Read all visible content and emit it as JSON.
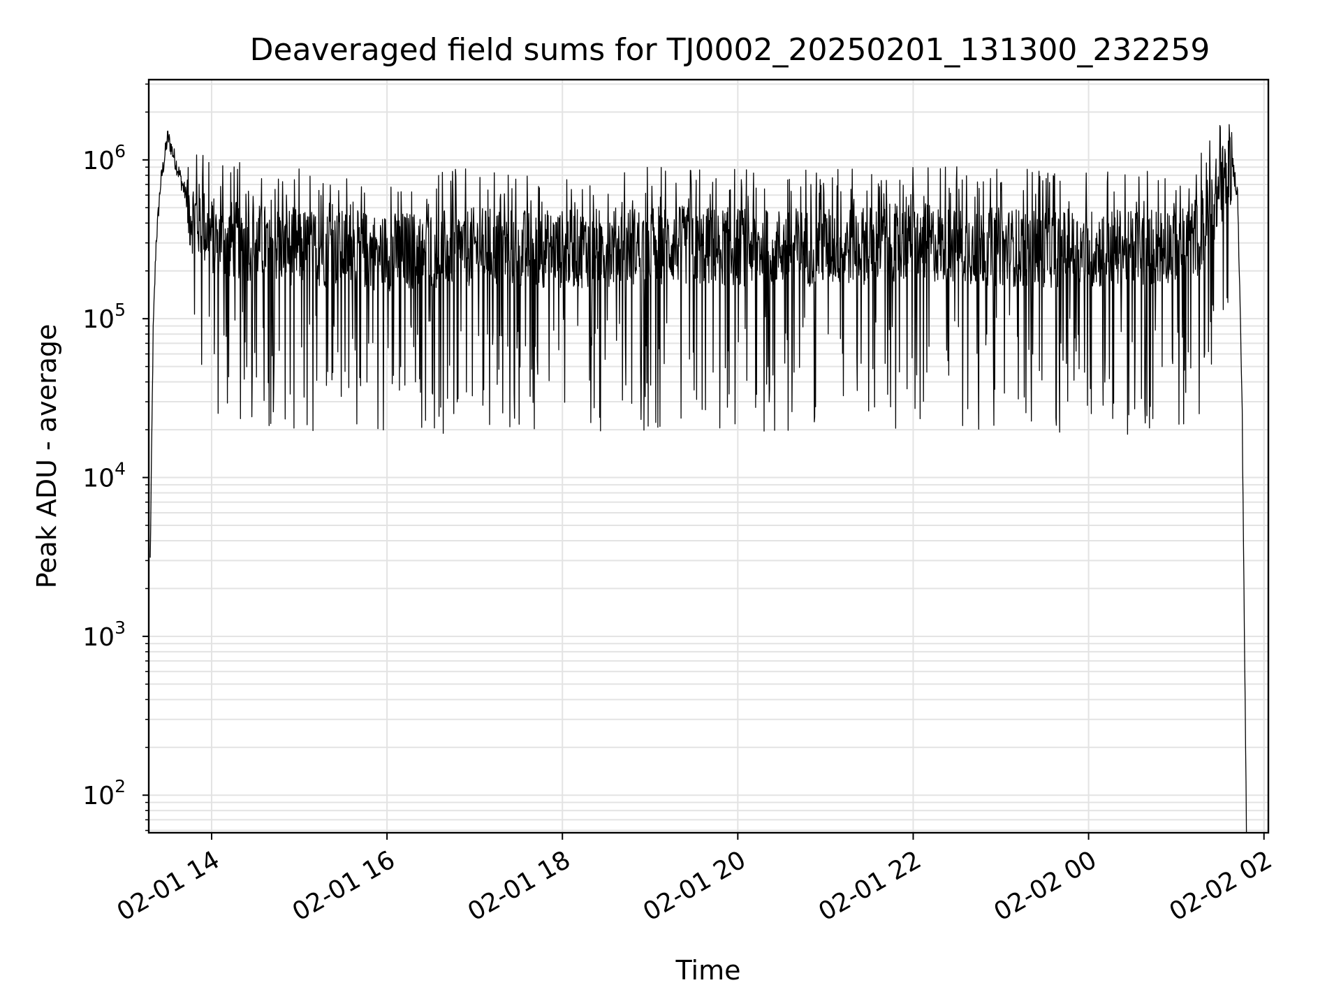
{
  "chart_data": {
    "type": "line",
    "title": "Deaveraged field sums for TJ0002_20250201_131300_232259",
    "xlabel": "Time",
    "ylabel": "Peak ADU - average",
    "yscale": "log",
    "ylim": [
      58,
      3200000
    ],
    "xlim": [
      "2025-02-01 13:17",
      "2025-02-02 02:03"
    ],
    "grid": true,
    "line_color": "#000000",
    "x_ticks": [
      {
        "value": "2025-02-01 14:00",
        "label": "02-01 14"
      },
      {
        "value": "2025-02-01 16:00",
        "label": "02-01 16"
      },
      {
        "value": "2025-02-01 18:00",
        "label": "02-01 18"
      },
      {
        "value": "2025-02-01 20:00",
        "label": "02-01 20"
      },
      {
        "value": "2025-02-01 22:00",
        "label": "02-01 22"
      },
      {
        "value": "2025-02-02 00:00",
        "label": "02-02 00"
      },
      {
        "value": "2025-02-02 02:00",
        "label": "02-02 02"
      }
    ],
    "y_ticks": [
      {
        "value": 100,
        "base": "10",
        "exp": "2"
      },
      {
        "value": 1000,
        "base": "10",
        "exp": "3"
      },
      {
        "value": 10000,
        "base": "10",
        "exp": "4"
      },
      {
        "value": 100000,
        "base": "10",
        "exp": "5"
      },
      {
        "value": 1000000,
        "base": "10",
        "exp": "6"
      }
    ],
    "x": [
      "2025-02-01 13:18",
      "2025-02-01 13:20",
      "2025-02-01 13:22",
      "2025-02-01 13:25",
      "2025-02-01 13:30",
      "2025-02-01 13:35",
      "2025-02-01 13:40",
      "2025-02-01 13:45",
      "2025-02-01 13:50",
      "2025-02-01 14:00",
      "2025-02-01 14:15",
      "2025-02-01 14:30",
      "2025-02-01 15:00",
      "2025-02-01 16:00",
      "2025-02-01 17:00",
      "2025-02-01 18:00",
      "2025-02-01 19:00",
      "2025-02-01 20:00",
      "2025-02-01 21:00",
      "2025-02-01 22:00",
      "2025-02-01 23:00",
      "2025-02-02 00:00",
      "2025-02-02 00:45",
      "2025-02-02 01:15",
      "2025-02-02 01:30",
      "2025-02-02 01:38",
      "2025-02-02 01:42",
      "2025-02-02 01:45",
      "2025-02-02 01:48"
    ],
    "y": [
      3000,
      80000,
      300000,
      700000,
      1400000,
      1000000,
      700000,
      500000,
      450000,
      350000,
      330000,
      320000,
      300000,
      280000,
      300000,
      290000,
      310000,
      300000,
      300000,
      320000,
      300000,
      290000,
      300000,
      350000,
      700000,
      1000000,
      600000,
      30000,
      60
    ]
  }
}
